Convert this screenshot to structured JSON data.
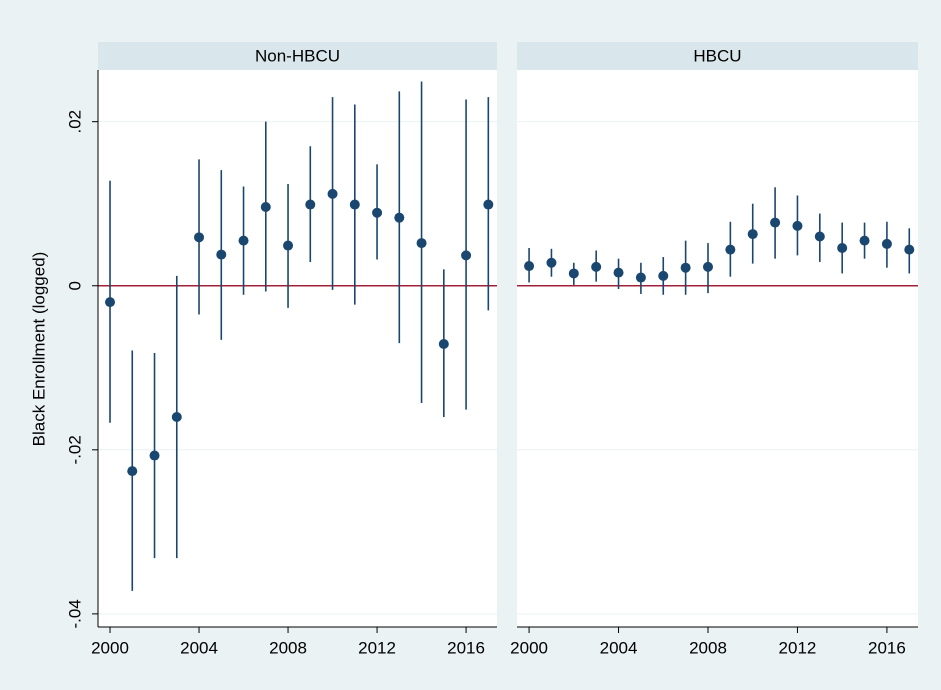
{
  "chart_data": [
    {
      "type": "errorbar",
      "title": "Non-HBCU",
      "y_label": "Black Enrollment (logged)",
      "x": [
        2000,
        2001,
        2002,
        2003,
        2004,
        2005,
        2006,
        2007,
        2008,
        2009,
        2010,
        2011,
        2012,
        2013,
        2014,
        2015,
        2016,
        2017
      ],
      "values": [
        -0.002,
        -0.0226,
        -0.0207,
        -0.016,
        0.0059,
        0.0038,
        0.0055,
        0.0096,
        0.0049,
        0.0099,
        0.0112,
        0.0099,
        0.0089,
        0.0083,
        0.0052,
        -0.0071,
        0.0037,
        0.0099
      ],
      "lower": [
        -0.0167,
        -0.0372,
        -0.0332,
        -0.0332,
        -0.0035,
        -0.0066,
        -0.0011,
        -0.0007,
        -0.0027,
        0.0029,
        -0.0005,
        -0.0023,
        0.0032,
        -0.007,
        -0.0143,
        -0.016,
        -0.0151,
        -0.003
      ],
      "upper": [
        0.0128,
        -0.0079,
        -0.0082,
        0.0012,
        0.0154,
        0.0141,
        0.0121,
        0.02,
        0.0124,
        0.017,
        0.023,
        0.0221,
        0.0148,
        0.0237,
        0.0249,
        0.002,
        0.0227,
        0.023
      ],
      "color": "#1a476f",
      "ref_line": 0,
      "ref_color": "#a0203a",
      "xlim": [
        1999.46,
        2017.39
      ],
      "xticks": [
        2000,
        2004,
        2008,
        2012,
        2016
      ],
      "ylim": [
        -0.0416,
        0.0263
      ],
      "yticks": [
        {
          "value": 0.02,
          "label": ".02"
        },
        0,
        {
          "value": -0.02,
          "label": "-.02"
        },
        {
          "value": -0.04,
          "label": "-.04"
        }
      ],
      "grid": true
    },
    {
      "type": "errorbar",
      "title": "HBCU",
      "x": [
        2000,
        2001,
        2002,
        2003,
        2004,
        2005,
        2006,
        2007,
        2008,
        2009,
        2010,
        2011,
        2012,
        2013,
        2014,
        2015,
        2016,
        2017
      ],
      "values": [
        0.0024,
        0.0028,
        0.0015,
        0.0023,
        0.0016,
        0.001,
        0.0012,
        0.0022,
        0.0023,
        0.0044,
        0.0063,
        0.0077,
        0.0073,
        0.006,
        0.0046,
        0.0055,
        0.0051,
        0.0044
      ],
      "lower": [
        0.0004,
        0.0011,
        0.0001,
        0.0005,
        -0.0004,
        -0.001,
        -0.0011,
        -0.0011,
        -0.0009,
        0.0011,
        0.0027,
        0.0033,
        0.0037,
        0.0029,
        0.0015,
        0.0033,
        0.0022,
        0.0015
      ],
      "upper": [
        0.0046,
        0.0045,
        0.0028,
        0.0043,
        0.0033,
        0.0028,
        0.0035,
        0.0055,
        0.0052,
        0.0078,
        0.01,
        0.012,
        0.011,
        0.0088,
        0.0077,
        0.0077,
        0.0078,
        0.007
      ],
      "color": "#1a476f",
      "ref_line": 0,
      "ref_color": "#a0203a",
      "xlim": [
        1999.46,
        2017.39
      ],
      "xticks": [
        2000,
        2004,
        2008,
        2012,
        2016
      ],
      "ylim": [
        -0.0416,
        0.0263
      ],
      "yticks": [
        0.02,
        0,
        -0.02,
        -0.04
      ],
      "grid": true
    }
  ]
}
